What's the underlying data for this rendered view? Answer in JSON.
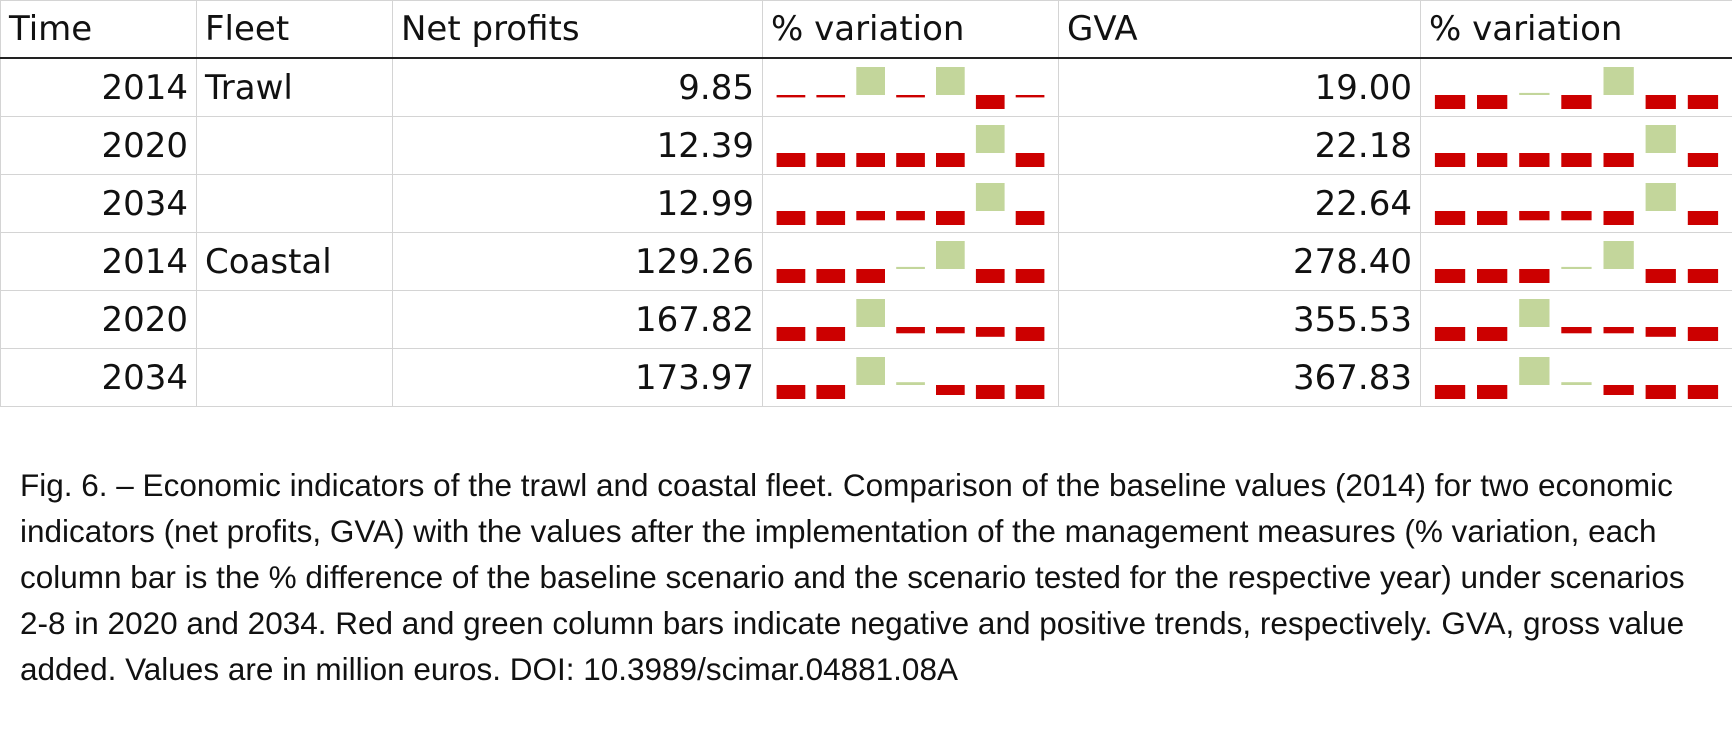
{
  "table": {
    "headers": [
      "Time",
      "Fleet",
      "Net profits",
      "% variation",
      "GVA",
      "% variation"
    ],
    "rows": [
      {
        "time": "2014",
        "fleet": "Trawl",
        "net_profits": "9.85",
        "gva": "19.00",
        "np_variation": [
          -0.7,
          -0.7,
          0.3,
          -0.7,
          0.3,
          -4.0,
          -0.7
        ],
        "gva_variation": [
          -0.7,
          -0.7,
          0.3,
          -0.7,
          4.0,
          -0.7,
          -0.7
        ]
      },
      {
        "time": "2020",
        "fleet": "",
        "net_profits": "12.39",
        "gva": "22.18",
        "np_variation": [
          -1.2,
          -1.2,
          -1.2,
          -1.2,
          -1.2,
          4.0,
          -1.2
        ],
        "gva_variation": [
          -1.2,
          -1.2,
          -1.2,
          -1.2,
          -1.2,
          4.0,
          -1.2
        ]
      },
      {
        "time": "2034",
        "fleet": "",
        "net_profits": "12.99",
        "gva": "22.64",
        "np_variation": [
          -1.2,
          -1.2,
          -0.8,
          -0.8,
          -1.2,
          4.0,
          -1.2
        ],
        "gva_variation": [
          -1.2,
          -1.2,
          -0.8,
          -0.8,
          -1.2,
          4.0,
          -1.2
        ]
      },
      {
        "time": "2014",
        "fleet": "Coastal",
        "net_profits": "129.26",
        "gva": "278.40",
        "np_variation": [
          -0.5,
          -0.5,
          -0.5,
          0.3,
          4.0,
          -0.5,
          -0.5
        ],
        "gva_variation": [
          -0.5,
          -0.5,
          -0.5,
          0.3,
          4.0,
          -0.5,
          -0.5
        ]
      },
      {
        "time": "2020",
        "fleet": "",
        "net_profits": "167.82",
        "gva": "355.53",
        "np_variation": [
          -2.0,
          -2.0,
          3.0,
          -0.9,
          -0.9,
          -1.4,
          -2.0
        ],
        "gva_variation": [
          -2.0,
          -2.0,
          3.0,
          -0.9,
          -0.9,
          -1.4,
          -2.0
        ]
      },
      {
        "time": "2034",
        "fleet": "",
        "net_profits": "173.97",
        "gva": "367.83",
        "np_variation": [
          -0.7,
          -0.7,
          4.0,
          0.4,
          -0.5,
          -0.7,
          -0.7
        ],
        "gva_variation": [
          -0.7,
          -0.7,
          4.0,
          0.4,
          -0.5,
          -0.7,
          -0.7
        ]
      }
    ]
  },
  "colors": {
    "negative": "#cc0000",
    "positive": "#c3d69b"
  },
  "caption": "Fig. 6. – Economic indicators of the trawl and coastal fleet. Comparison of the baseline values (2014) for two economic indicators (net profits, GVA) with the values after the implementation of the management measures (% variation, each column bar is the % difference of the baseline scenario and the scenario tested for the respective year) under scenarios 2-8 in 2020 and 2034. Red and green column bars indicate negative and positive trends, respectively. GVA, gross value added. Values are in million euros. DOI: 10.3989/scimar.04881.08A"
}
